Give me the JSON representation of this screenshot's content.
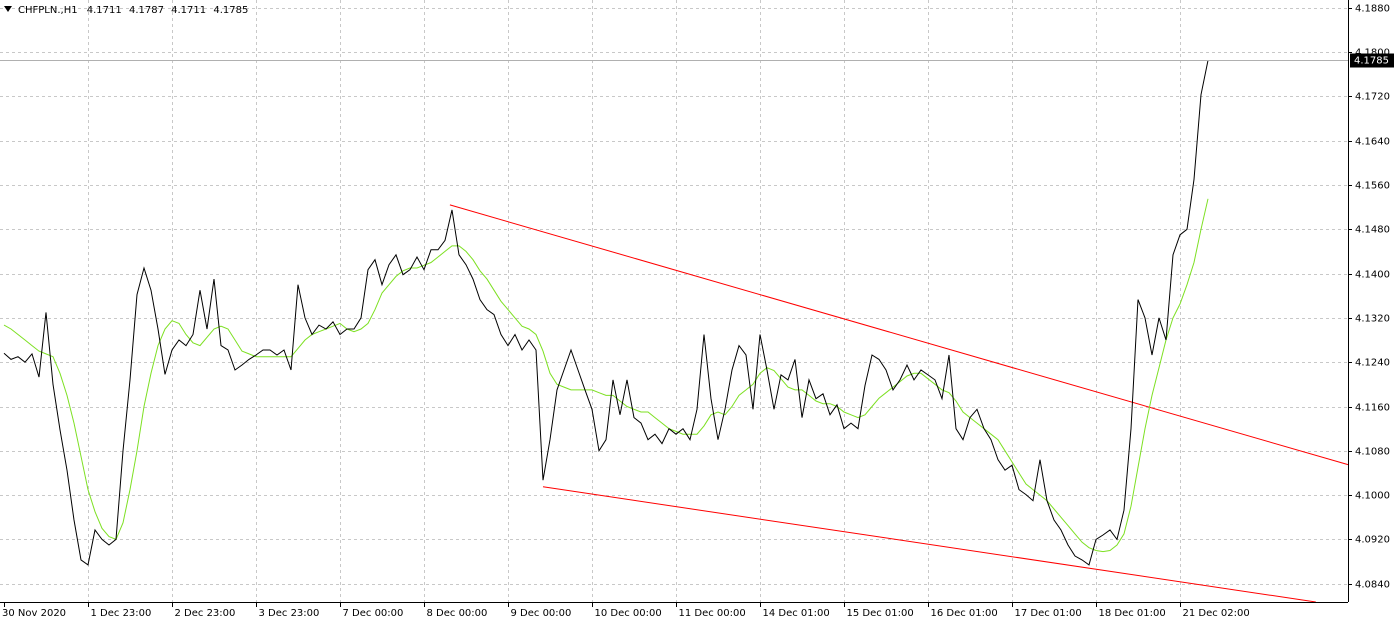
{
  "chart_data": {
    "type": "line",
    "title": "CHFPLN.,H1",
    "ohlc": [
      4.1711,
      4.1787,
      4.1711,
      4.1785
    ],
    "categories": [
      "30 Nov 2020",
      null,
      null,
      null,
      null,
      null,
      null,
      null,
      null,
      null,
      null,
      null,
      "1 Dec 23:00",
      null,
      null,
      null,
      null,
      null,
      null,
      null,
      null,
      null,
      null,
      null,
      "2 Dec 23:00",
      null,
      null,
      null,
      null,
      null,
      null,
      null,
      null,
      null,
      null,
      null,
      "3 Dec 23:00",
      null,
      null,
      null,
      null,
      null,
      null,
      null,
      null,
      null,
      null,
      null,
      "7 Dec 00:00",
      null,
      null,
      null,
      null,
      null,
      null,
      null,
      null,
      null,
      null,
      null,
      "8 Dec 00:00",
      null,
      null,
      null,
      null,
      null,
      null,
      null,
      null,
      null,
      null,
      null,
      "9 Dec 00:00",
      null,
      null,
      null,
      null,
      null,
      null,
      null,
      null,
      null,
      null,
      null,
      "10 Dec 00:00",
      null,
      null,
      null,
      null,
      null,
      null,
      null,
      null,
      null,
      null,
      null,
      "11 Dec 00:00",
      null,
      null,
      null,
      null,
      null,
      null,
      null,
      null,
      null,
      null,
      null,
      "14 Dec 01:00",
      null,
      null,
      null,
      null,
      null,
      null,
      null,
      null,
      null,
      null,
      null,
      "15 Dec 01:00",
      null,
      null,
      null,
      null,
      null,
      null,
      null,
      null,
      null,
      null,
      null,
      "16 Dec 01:00",
      null,
      null,
      null,
      null,
      null,
      null,
      null,
      null,
      null,
      null,
      null,
      "17 Dec 01:00",
      null,
      null,
      null,
      null,
      null,
      null,
      null,
      null,
      null,
      null,
      null,
      "18 Dec 01:00",
      null,
      null,
      null,
      null,
      null,
      null,
      null,
      null,
      null,
      null,
      null,
      "21 Dec 02:00",
      null,
      null,
      null,
      null
    ],
    "series": [
      {
        "name": "CHFPLN.,H1",
        "color": "#000000",
        "values": [
          4.1256,
          4.1245,
          4.125,
          4.124,
          4.1255,
          4.1213,
          4.133,
          4.12,
          4.1118,
          4.1045,
          4.0955,
          4.0883,
          4.0874,
          4.0937,
          4.092,
          4.091,
          4.092,
          4.108,
          4.1208,
          4.1362,
          4.141,
          4.137,
          4.13,
          4.1218,
          4.1262,
          4.128,
          4.127,
          4.129,
          4.137,
          4.13,
          4.139,
          4.127,
          4.1262,
          4.1226,
          4.1235,
          4.1245,
          4.1253,
          4.1262,
          4.1262,
          4.1253,
          4.1262,
          4.1226,
          4.138,
          4.132,
          4.129,
          4.1307,
          4.13,
          4.1313,
          4.129,
          4.13,
          4.13,
          4.132,
          4.1407,
          4.1425,
          4.138,
          4.1416,
          4.1434,
          4.1398,
          4.1407,
          4.143,
          4.1407,
          4.1443,
          4.1443,
          4.146,
          4.1515,
          4.1434,
          4.1416,
          4.139,
          4.1353,
          4.1335,
          4.1326,
          4.129,
          4.127,
          4.129,
          4.1262,
          4.128,
          4.1262,
          4.1027,
          4.11,
          4.119,
          4.1226,
          4.1262,
          4.1226,
          4.119,
          4.1155,
          4.108,
          4.11,
          4.1208,
          4.1145,
          4.1208,
          4.114,
          4.113,
          4.11,
          4.111,
          4.1093,
          4.112,
          4.111,
          4.112,
          4.11,
          4.1155,
          4.129,
          4.1174,
          4.11,
          4.1155,
          4.1226,
          4.127,
          4.1253,
          4.1155,
          4.129,
          4.1226,
          4.1155,
          4.1217,
          4.1208,
          4.1245,
          4.114,
          4.1208,
          4.1174,
          4.1183,
          4.1145,
          4.1163,
          4.112,
          4.113,
          4.112,
          4.1198,
          4.1253,
          4.1245,
          4.1226,
          4.119,
          4.1208,
          4.1235,
          4.1208,
          4.1226,
          4.1217,
          4.1208,
          4.1174,
          4.1253,
          4.112,
          4.11,
          4.114,
          4.1155,
          4.112,
          4.11,
          4.1064,
          4.1045,
          4.1054,
          4.101,
          4.1001,
          4.099,
          4.1064,
          4.099,
          4.0955,
          4.0937,
          4.091,
          4.089,
          4.0883,
          4.0874,
          4.092,
          4.0928,
          4.0937,
          4.092,
          4.0973,
          4.112,
          4.1353,
          4.132,
          4.1253,
          4.132,
          4.128,
          4.1434,
          4.147,
          4.148,
          4.157,
          4.1723,
          4.1785
        ]
      },
      {
        "color": "#7de022",
        "values": [
          4.1307,
          4.13,
          4.129,
          4.128,
          4.127,
          4.126,
          4.1255,
          4.125,
          4.122,
          4.118,
          4.113,
          4.107,
          4.101,
          4.097,
          4.094,
          4.0925,
          4.092,
          4.095,
          4.101,
          4.108,
          4.116,
          4.122,
          4.127,
          4.13,
          4.1315,
          4.131,
          4.129,
          4.1275,
          4.127,
          4.1285,
          4.13,
          4.1305,
          4.13,
          4.128,
          4.126,
          4.1255,
          4.125,
          4.125,
          4.125,
          4.125,
          4.125,
          4.125,
          4.1265,
          4.128,
          4.129,
          4.1295,
          4.13,
          4.1305,
          4.131,
          4.13,
          4.1295,
          4.13,
          4.131,
          4.1335,
          4.1365,
          4.138,
          4.1395,
          4.1405,
          4.141,
          4.141,
          4.1415,
          4.142,
          4.143,
          4.144,
          4.145,
          4.145,
          4.144,
          4.1425,
          4.1405,
          4.139,
          4.137,
          4.135,
          4.1335,
          4.132,
          4.1305,
          4.13,
          4.129,
          4.126,
          4.122,
          4.12,
          4.1195,
          4.119,
          4.119,
          4.119,
          4.119,
          4.1185,
          4.118,
          4.118,
          4.117,
          4.116,
          4.1155,
          4.115,
          4.115,
          4.114,
          4.113,
          4.112,
          4.1115,
          4.111,
          4.111,
          4.111,
          4.1125,
          4.1145,
          4.115,
          4.1145,
          4.116,
          4.118,
          4.119,
          4.12,
          4.122,
          4.123,
          4.1225,
          4.121,
          4.1195,
          4.119,
          4.119,
          4.118,
          4.117,
          4.1165,
          4.1165,
          4.116,
          4.115,
          4.1145,
          4.114,
          4.1145,
          4.116,
          4.1175,
          4.1185,
          4.1195,
          4.1205,
          4.1215,
          4.122,
          4.122,
          4.121,
          4.12,
          4.119,
          4.1185,
          4.117,
          4.115,
          4.114,
          4.113,
          4.112,
          4.111,
          4.11,
          4.108,
          4.106,
          4.104,
          4.102,
          4.101,
          4.1,
          4.099,
          4.0975,
          4.096,
          4.0945,
          4.093,
          4.0915,
          4.0905,
          4.09,
          4.0898,
          4.09,
          4.091,
          4.093,
          4.098,
          4.105,
          4.112,
          4.118,
          4.123,
          4.128,
          4.132,
          4.1345,
          4.138,
          4.142,
          4.148,
          4.1535
        ]
      }
    ],
    "trendlines": [
      {
        "color": "#ff0000",
        "x": [
          63.7,
          192
        ],
        "values": [
          4.1524,
          4.1055
        ]
      },
      {
        "color": "#ff0000",
        "x": [
          77,
          187.4
        ],
        "values": [
          4.1015,
          4.0807
        ]
      }
    ],
    "ylim": [
      4.0807,
      4.1894
    ],
    "yticks": [
      {
        "value": 4.188,
        "label": "4.1880"
      },
      {
        "value": 4.18,
        "label": "4.1800"
      },
      {
        "value": 4.172,
        "label": "4.1720"
      },
      {
        "value": 4.164,
        "label": "4.1640"
      },
      {
        "value": 4.156,
        "label": "4.1560"
      },
      {
        "value": 4.148,
        "label": "4.1480"
      },
      {
        "value": 4.14,
        "label": "4.1400"
      },
      {
        "value": 4.132,
        "label": "4.1320"
      },
      {
        "value": 4.124,
        "label": "4.1240"
      },
      {
        "value": 4.116,
        "label": "4.1160"
      },
      {
        "value": 4.108,
        "label": "4.1080"
      },
      {
        "value": 4.1,
        "label": "4.1000"
      },
      {
        "value": 4.092,
        "label": "4.0920"
      },
      {
        "value": 4.084,
        "label": "4.0840"
      }
    ],
    "grid": true
  }
}
